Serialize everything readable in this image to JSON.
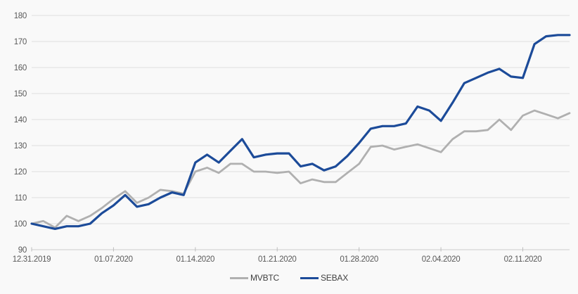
{
  "colors": {
    "background": "#f9f9f9",
    "gridline": "#e0e0e0",
    "axis_line": "#cccccc",
    "tick_mark": "#bdbdbd",
    "axis_text": "#595959",
    "legend_text": "#3f3f3f",
    "mvbtc_gray": "#b0b0b0",
    "sebax_blue": "#1c4b99"
  },
  "chart_data": {
    "type": "line",
    "title": "",
    "xlabel": "",
    "ylabel": "",
    "grid": "horizontal",
    "legend_position": "bottom-center",
    "ylim": [
      90,
      180
    ],
    "ytick_step": 10,
    "x": [
      "12.31.2019",
      "01.01.2020",
      "01.02.2020",
      "01.03.2020",
      "01.04.2020",
      "01.05.2020",
      "01.06.2020",
      "01.07.2020",
      "01.08.2020",
      "01.09.2020",
      "01.10.2020",
      "01.11.2020",
      "01.12.2020",
      "01.13.2020",
      "01.14.2020",
      "01.15.2020",
      "01.16.2020",
      "01.17.2020",
      "01.18.2020",
      "01.19.2020",
      "01.20.2020",
      "01.21.2020",
      "01.22.2020",
      "01.23.2020",
      "01.24.2020",
      "01.25.2020",
      "01.26.2020",
      "01.27.2020",
      "01.28.2020",
      "01.29.2020",
      "01.30.2020",
      "01.31.2020",
      "02.01.2020",
      "02.02.2020",
      "02.03.2020",
      "02.04.2020",
      "02.05.2020",
      "02.06.2020",
      "02.07.2020",
      "02.08.2020",
      "02.09.2020",
      "02.10.2020",
      "02.11.2020",
      "02.12.2020",
      "02.13.2020",
      "02.14.2020",
      "02.15.2020"
    ],
    "xtick_positions": [
      0,
      7,
      14,
      21,
      28,
      35,
      42
    ],
    "xtick_labels": [
      "12.31.2019",
      "01.07.2020",
      "01.14.2020",
      "01.21.2020",
      "01.28.2020",
      "02.04.2020",
      "02.11.2020"
    ],
    "series": [
      {
        "name": "MVBTC",
        "color": "#b0b0b0",
        "values": [
          100,
          101,
          98.5,
          103,
          101,
          103,
          106,
          109.5,
          112.5,
          108,
          110,
          113,
          112.5,
          111.5,
          120,
          121.5,
          119.5,
          123,
          123,
          120,
          120,
          119.5,
          120,
          115.5,
          117,
          116,
          116,
          119.5,
          123,
          129.5,
          130,
          128.5,
          129.5,
          130.5,
          129,
          127.5,
          132.5,
          135.5,
          135.5,
          136,
          140,
          136,
          141.5,
          143.5,
          142,
          140.5,
          142.5
        ]
      },
      {
        "name": "SEBAX",
        "color": "#1c4b99",
        "values": [
          100,
          99,
          98,
          99,
          99,
          100,
          104,
          107,
          111,
          106.5,
          107.5,
          110,
          112,
          111,
          123.5,
          126.5,
          123.5,
          128,
          132.5,
          125.5,
          126.5,
          127,
          127,
          122,
          123,
          120.5,
          122,
          126,
          131,
          136.5,
          137.5,
          137.5,
          138.5,
          145,
          143.5,
          139.5,
          146.5,
          154,
          156,
          158,
          159.5,
          156.5,
          156,
          169,
          172,
          172.5,
          172.5
        ]
      }
    ]
  }
}
